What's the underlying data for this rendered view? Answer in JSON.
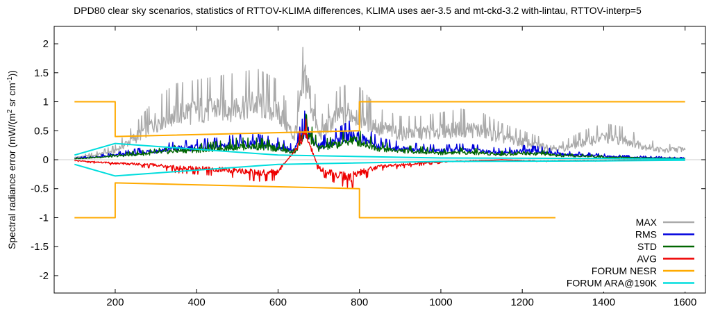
{
  "chart_data": {
    "type": "line",
    "title": "DPD80 clear sky scenarios, statistics of RTTOV-KLIMA differences, KLIMA uses aer-3.5 and mt-ckd-3.2 with-lintau, RTTOV-interp=5",
    "ylabel": "Spectral radiance error (mW/(m² sr cm⁻¹))",
    "ylabel_parts": {
      "main": "Spectral radiance error (mW/(m",
      "sup1": "2",
      "mid": " sr cm",
      "sup2": "-1",
      "end": "))"
    },
    "xlabel": "",
    "xlim": [
      50,
      1650
    ],
    "ylim": [
      -2.3,
      2.3
    ],
    "xticks": [
      200,
      400,
      600,
      800,
      1000,
      1200,
      1400,
      1600
    ],
    "xtick_labels": [
      "200",
      "400",
      "600",
      "800",
      "1000",
      "1200",
      "1400",
      "1600"
    ],
    "yticks": [
      2,
      1.5,
      1,
      0.5,
      0,
      -0.5,
      -1,
      -1.5,
      -2
    ],
    "ytick_labels": [
      "2",
      "1.5",
      "1",
      "0.5",
      "0",
      "-0.5",
      "-1",
      "-1.5",
      "-2"
    ],
    "legend_position": "bottom-right",
    "series": [
      {
        "name": "MAX",
        "color": "#aaaaaa",
        "x": [
          100,
          150,
          200,
          250,
          300,
          350,
          400,
          450,
          500,
          550,
          600,
          640,
          667,
          700,
          750,
          780,
          800,
          850,
          900,
          950,
          1000,
          1050,
          1100,
          1150,
          1200,
          1250,
          1300,
          1350,
          1400,
          1450,
          1500,
          1550,
          1600
        ],
        "y": [
          0.05,
          0.1,
          0.2,
          0.5,
          0.85,
          1.05,
          1.1,
          1.15,
          1.2,
          1.25,
          1.1,
          0.5,
          1.85,
          0.55,
          1.0,
          1.05,
          1.0,
          0.7,
          0.6,
          0.6,
          0.65,
          0.7,
          0.65,
          0.5,
          0.4,
          0.3,
          0.25,
          0.4,
          0.5,
          0.45,
          0.3,
          0.2,
          0.25
        ]
      },
      {
        "name": "RMS",
        "color": "#0000dd",
        "x": [
          100,
          150,
          200,
          250,
          300,
          350,
          400,
          450,
          500,
          550,
          600,
          640,
          667,
          700,
          750,
          780,
          800,
          850,
          900,
          950,
          1000,
          1050,
          1100,
          1150,
          1200,
          1250,
          1300,
          1350,
          1400,
          1450,
          1500,
          1550,
          1600
        ],
        "y": [
          0.03,
          0.06,
          0.1,
          0.15,
          0.2,
          0.25,
          0.28,
          0.3,
          0.35,
          0.35,
          0.3,
          0.2,
          0.7,
          0.3,
          0.45,
          0.55,
          0.5,
          0.3,
          0.25,
          0.22,
          0.2,
          0.22,
          0.2,
          0.15,
          0.2,
          0.18,
          0.12,
          0.1,
          0.08,
          0.06,
          0.05,
          0.04,
          0.03
        ]
      },
      {
        "name": "STD",
        "color": "#006600",
        "x": [
          100,
          150,
          200,
          250,
          300,
          350,
          400,
          450,
          500,
          550,
          600,
          640,
          667,
          700,
          750,
          780,
          800,
          850,
          900,
          950,
          1000,
          1050,
          1100,
          1150,
          1200,
          1250,
          1300,
          1350,
          1400,
          1450,
          1500,
          1550,
          1600
        ],
        "y": [
          0.02,
          0.05,
          0.08,
          0.12,
          0.15,
          0.2,
          0.22,
          0.25,
          0.3,
          0.3,
          0.25,
          0.15,
          0.65,
          0.25,
          0.35,
          0.45,
          0.4,
          0.25,
          0.2,
          0.18,
          0.15,
          0.17,
          0.15,
          0.12,
          0.15,
          0.13,
          0.08,
          0.08,
          0.06,
          0.05,
          0.04,
          0.03,
          0.02
        ]
      },
      {
        "name": "AVG",
        "color": "#ee0000",
        "x": [
          100,
          150,
          200,
          250,
          300,
          350,
          400,
          450,
          500,
          550,
          600,
          640,
          667,
          700,
          750,
          780,
          800,
          850,
          900,
          950,
          1000,
          1050,
          1100,
          1150,
          1200,
          1250,
          1300,
          1350,
          1400,
          1450,
          1500,
          1550,
          1600
        ],
        "y": [
          -0.02,
          -0.05,
          -0.08,
          -0.1,
          -0.12,
          -0.18,
          -0.2,
          -0.22,
          -0.25,
          -0.3,
          -0.28,
          0.2,
          0.6,
          -0.2,
          -0.35,
          -0.4,
          -0.3,
          -0.15,
          -0.12,
          -0.08,
          -0.05,
          -0.03,
          -0.02,
          0.0,
          -0.02,
          -0.03,
          -0.02,
          -0.02,
          -0.02,
          -0.01,
          -0.01,
          -0.01,
          -0.01
        ]
      },
      {
        "name": "FORUM NESR",
        "color": "#ffaa00",
        "x": [
          100,
          200,
          200,
          800,
          800,
          1600
        ],
        "y": [
          1,
          1,
          0.4,
          0.5,
          1,
          1
        ],
        "y_lower": [
          -1,
          -1,
          -0.4,
          -0.5,
          -1,
          -1
        ]
      },
      {
        "name": "FORUM ARA@190K",
        "color": "#00dddd",
        "x": [
          100,
          200,
          600,
          1000,
          1400,
          1600
        ],
        "y": [
          0.08,
          0.28,
          0.08,
          0.03,
          0.02,
          0.01
        ],
        "y_lower": [
          -0.08,
          -0.28,
          -0.08,
          -0.03,
          -0.02,
          -0.01
        ]
      }
    ]
  }
}
